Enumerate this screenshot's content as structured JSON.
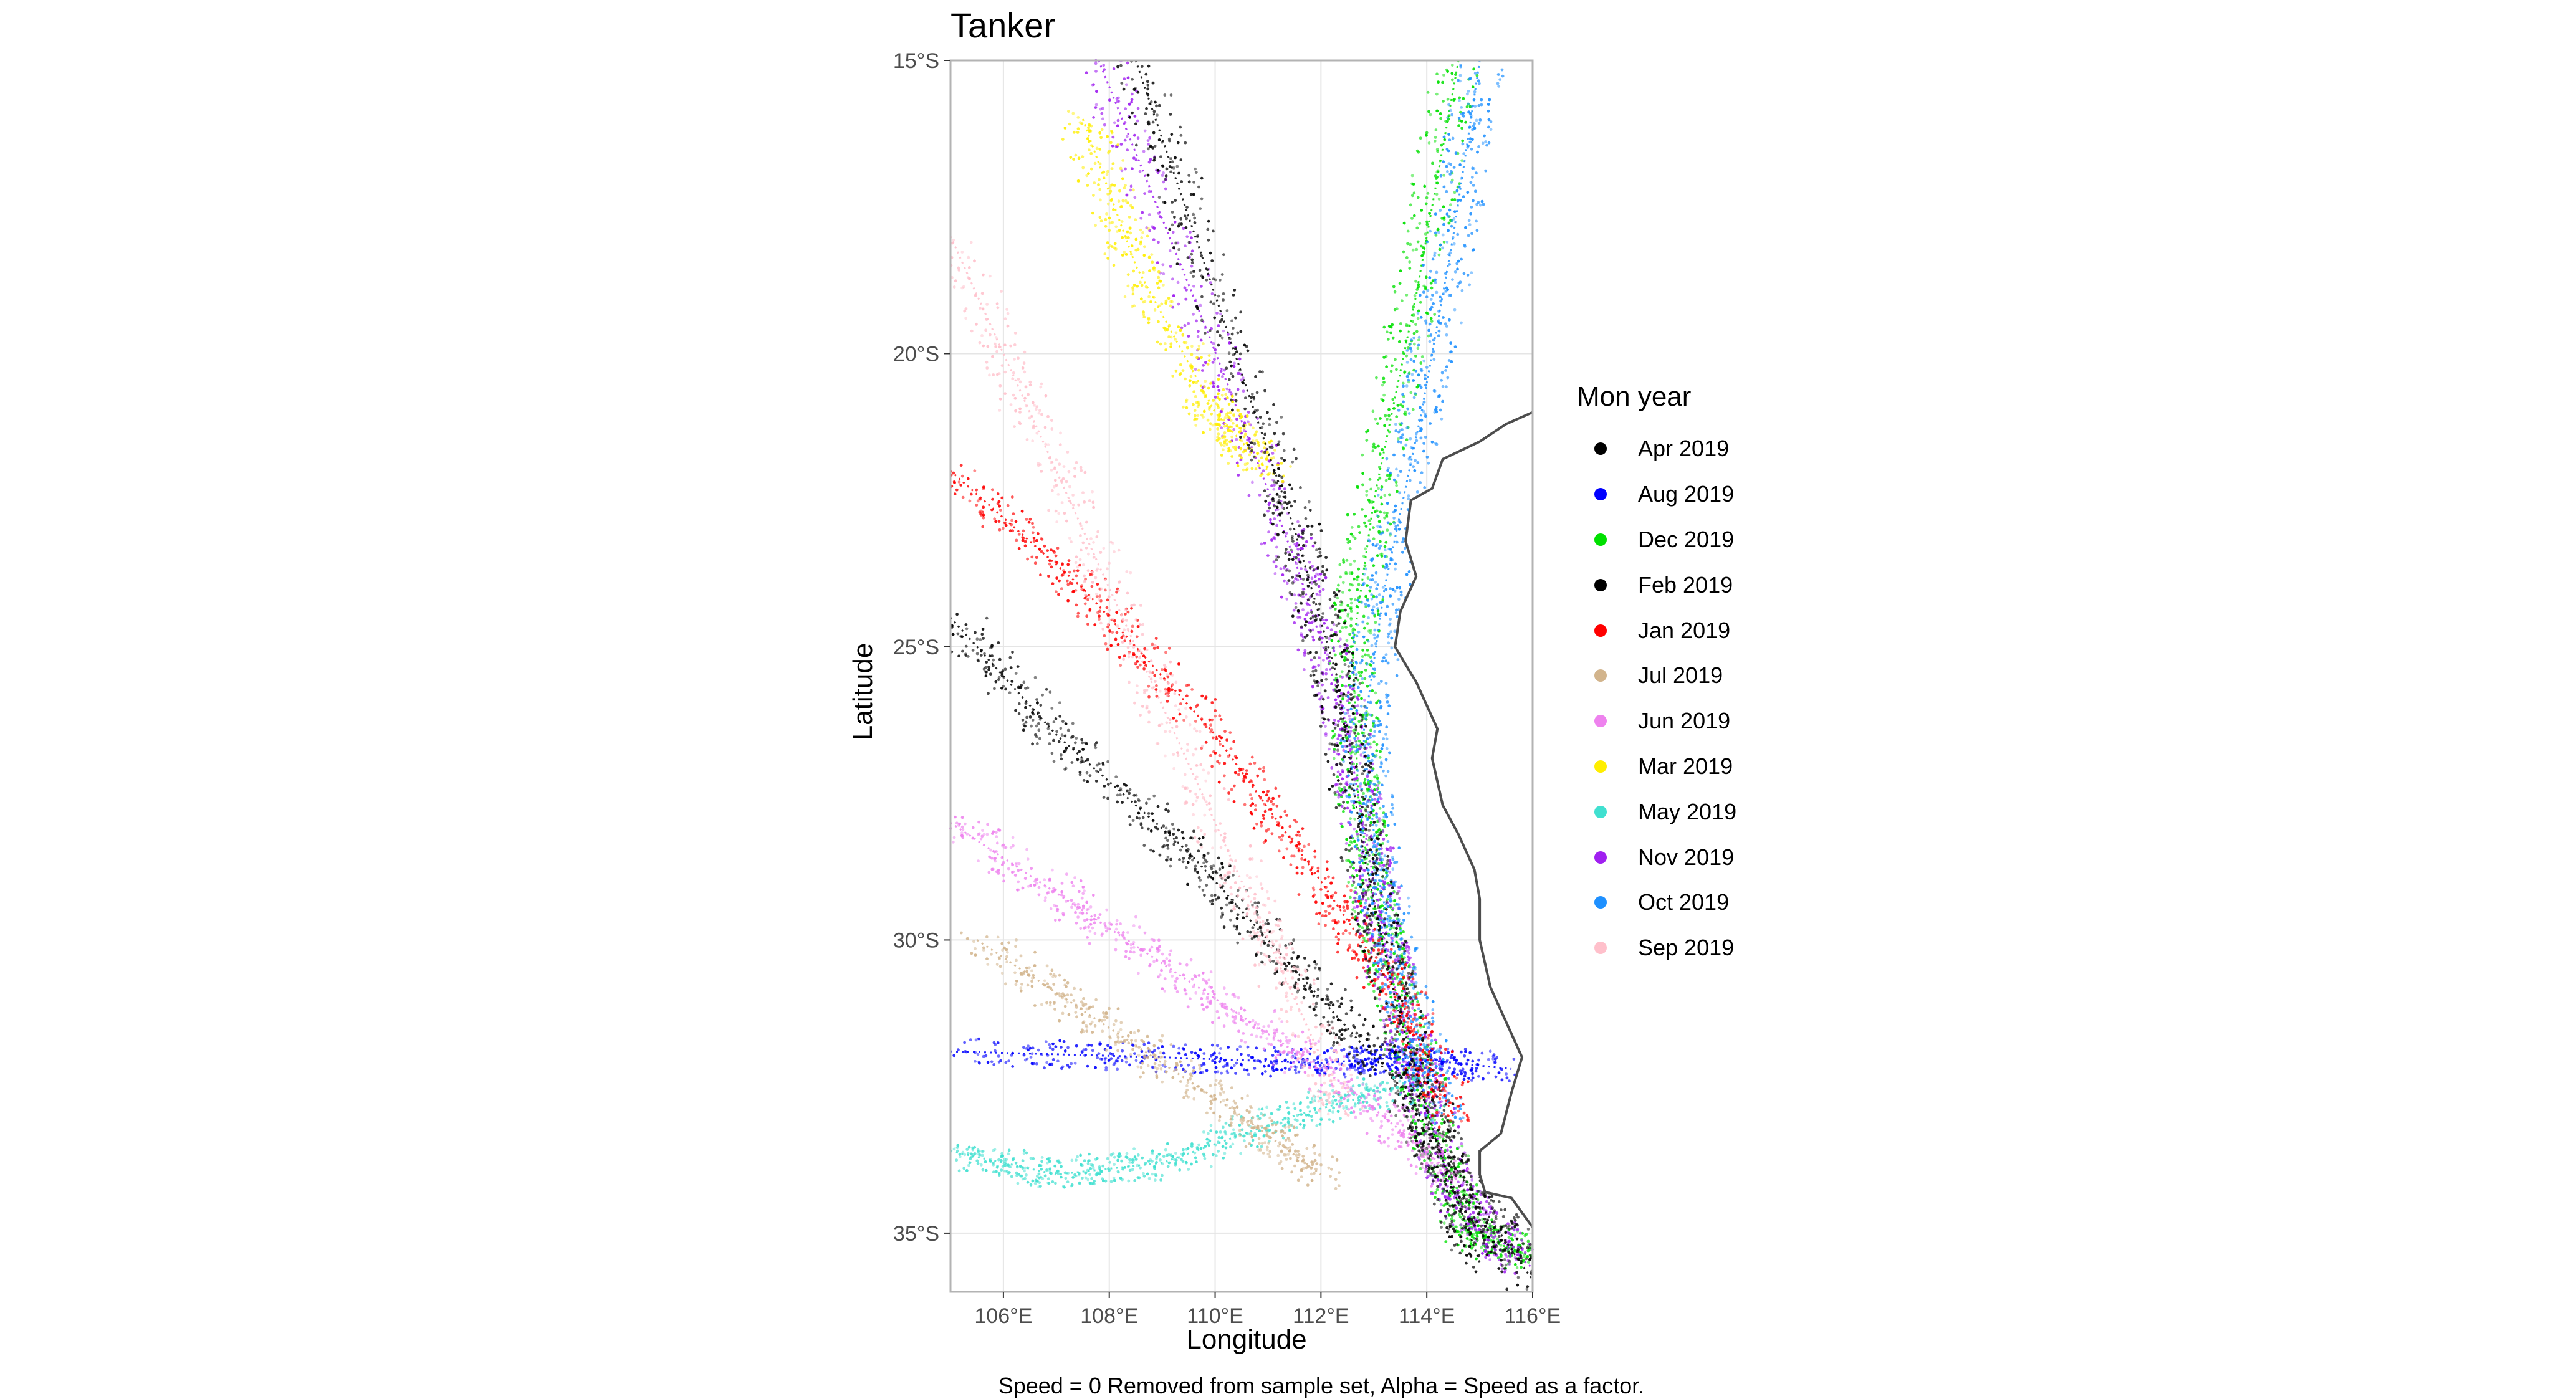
{
  "chart_data": {
    "type": "scatter",
    "title": "Tanker",
    "xlabel": "Longitude",
    "ylabel": "Latitude",
    "caption": "Speed = 0 Removed from sample set, Alpha = Speed as a factor.",
    "xlim": [
      105.0,
      116.0
    ],
    "ylim": [
      -36.0,
      -15.0
    ],
    "x_ticks": [
      106,
      108,
      110,
      112,
      114,
      116
    ],
    "x_tick_labels": [
      "106°E",
      "108°E",
      "110°E",
      "112°E",
      "114°E",
      "116°E"
    ],
    "y_ticks": [
      -15,
      -20,
      -25,
      -30,
      -35
    ],
    "y_tick_labels": [
      "15°S",
      "20°S",
      "25°S",
      "30°S",
      "35°S"
    ],
    "grid": true,
    "legend": {
      "title": "Mon year",
      "position": "right",
      "entries": [
        {
          "label": "Apr 2019",
          "color": "#000000"
        },
        {
          "label": "Aug 2019",
          "color": "#0000ff"
        },
        {
          "label": "Dec 2019",
          "color": "#00e000"
        },
        {
          "label": "Feb 2019",
          "color": "#000000"
        },
        {
          "label": "Jan 2019",
          "color": "#ff0000"
        },
        {
          "label": "Jul 2019",
          "color": "#d2b48c"
        },
        {
          "label": "Jun 2019",
          "color": "#ee82ee"
        },
        {
          "label": "Mar 2019",
          "color": "#ffee00"
        },
        {
          "label": "May 2019",
          "color": "#40e0d0"
        },
        {
          "label": "Nov 2019",
          "color": "#a020f0"
        },
        {
          "label": "Oct 2019",
          "color": "#1e90ff"
        },
        {
          "label": "Sep 2019",
          "color": "#ffc0cb"
        }
      ]
    },
    "coastline": [
      [
        116.0,
        -21.0
      ],
      [
        115.5,
        -21.2
      ],
      [
        115.0,
        -21.5
      ],
      [
        114.3,
        -21.8
      ],
      [
        114.1,
        -22.3
      ],
      [
        113.7,
        -22.5
      ],
      [
        113.6,
        -23.2
      ],
      [
        113.8,
        -23.8
      ],
      [
        113.5,
        -24.4
      ],
      [
        113.4,
        -25.0
      ],
      [
        113.6,
        -25.3
      ],
      [
        113.8,
        -25.6
      ],
      [
        114.0,
        -26.0
      ],
      [
        114.2,
        -26.4
      ],
      [
        114.1,
        -26.9
      ],
      [
        114.3,
        -27.7
      ],
      [
        114.6,
        -28.2
      ],
      [
        114.9,
        -28.8
      ],
      [
        115.0,
        -29.3
      ],
      [
        115.0,
        -30.0
      ],
      [
        115.2,
        -30.8
      ],
      [
        115.6,
        -31.6
      ],
      [
        115.8,
        -32.0
      ],
      [
        115.6,
        -32.6
      ],
      [
        115.4,
        -33.3
      ],
      [
        115.0,
        -33.6
      ],
      [
        115.0,
        -34.0
      ],
      [
        115.1,
        -34.3
      ],
      [
        115.6,
        -34.4
      ],
      [
        116.0,
        -34.9
      ]
    ],
    "series": [
      {
        "name": "Dec 2019",
        "color": "#00e000",
        "path": [
          [
            114.6,
            -15.0
          ],
          [
            113.8,
            -19.0
          ],
          [
            113.0,
            -22.5
          ],
          [
            112.6,
            -25.0
          ],
          [
            112.7,
            -27.5
          ],
          [
            113.0,
            -29.5
          ],
          [
            113.6,
            -31.5
          ],
          [
            114.2,
            -33.5
          ],
          [
            114.8,
            -35.0
          ],
          [
            116.0,
            -35.4
          ]
        ]
      },
      {
        "name": "Nov 2019",
        "color": "#a020f0",
        "path": [
          [
            107.8,
            -15.0
          ],
          [
            109.8,
            -19.5
          ],
          [
            111.5,
            -23.5
          ],
          [
            112.4,
            -26.0
          ],
          [
            112.9,
            -28.5
          ],
          [
            113.3,
            -30.5
          ],
          [
            113.9,
            -32.5
          ],
          [
            114.6,
            -34.5
          ],
          [
            116.0,
            -35.6
          ]
        ]
      },
      {
        "name": "Aug 2019",
        "color": "#0000ff",
        "path": [
          [
            105.0,
            -31.9
          ],
          [
            109.0,
            -32.0
          ],
          [
            112.0,
            -32.1
          ],
          [
            113.5,
            -32.0
          ],
          [
            115.6,
            -32.2
          ]
        ]
      },
      {
        "name": "Oct 2019",
        "color": "#1e90ff",
        "path": [
          [
            115.0,
            -15.0
          ],
          [
            114.5,
            -18.0
          ],
          [
            113.9,
            -21.0
          ],
          [
            113.2,
            -24.0
          ],
          [
            112.8,
            -26.5
          ],
          [
            113.1,
            -29.0
          ],
          [
            113.6,
            -31.0
          ],
          [
            114.3,
            -33.0
          ]
        ]
      },
      {
        "name": "Apr 2019",
        "color": "#000000",
        "path": [
          [
            105.0,
            -24.5
          ],
          [
            107.0,
            -26.5
          ],
          [
            109.5,
            -28.5
          ],
          [
            111.5,
            -30.5
          ],
          [
            113.5,
            -32.5
          ],
          [
            115.0,
            -34.5
          ],
          [
            116.0,
            -35.8
          ]
        ]
      },
      {
        "name": "Jan 2019",
        "color": "#ff0000",
        "path": [
          [
            105.0,
            -22.0
          ],
          [
            107.5,
            -24.0
          ],
          [
            110.0,
            -26.5
          ],
          [
            112.0,
            -29.0
          ],
          [
            113.5,
            -31.0
          ],
          [
            114.5,
            -33.0
          ]
        ]
      },
      {
        "name": "May 2019",
        "color": "#40e0d0",
        "path": [
          [
            105.0,
            -33.6
          ],
          [
            107.0,
            -34.0
          ],
          [
            109.0,
            -33.8
          ],
          [
            111.5,
            -33.0
          ],
          [
            113.5,
            -32.5
          ]
        ]
      },
      {
        "name": "Jun 2019",
        "color": "#ee82ee",
        "path": [
          [
            105.0,
            -28.0
          ],
          [
            107.5,
            -29.5
          ],
          [
            110.0,
            -31.0
          ],
          [
            112.5,
            -32.5
          ],
          [
            114.5,
            -34.0
          ]
        ]
      },
      {
        "name": "Mar 2019",
        "color": "#ffee00",
        "path": [
          [
            107.5,
            -16.0
          ],
          [
            108.5,
            -18.5
          ],
          [
            110.0,
            -21.0
          ],
          [
            111.0,
            -22.0
          ]
        ]
      },
      {
        "name": "Sep 2019",
        "color": "#ffc0cb",
        "path": [
          [
            105.0,
            -18.0
          ],
          [
            107.0,
            -22.0
          ],
          [
            109.0,
            -26.0
          ],
          [
            111.0,
            -30.0
          ],
          [
            112.5,
            -33.0
          ]
        ]
      },
      {
        "name": "Jul 2019",
        "color": "#d2b48c",
        "path": [
          [
            105.5,
            -30.0
          ],
          [
            108.0,
            -31.5
          ],
          [
            110.5,
            -33.0
          ],
          [
            112.0,
            -34.0
          ]
        ]
      },
      {
        "name": "Feb 2019",
        "color": "#000000",
        "path": [
          [
            108.5,
            -15.0
          ],
          [
            110.0,
            -19.0
          ],
          [
            111.5,
            -23.0
          ],
          [
            112.3,
            -25.5
          ],
          [
            112.8,
            -28.5
          ],
          [
            113.4,
            -31.0
          ],
          [
            114.2,
            -33.5
          ],
          [
            115.0,
            -35.5
          ]
        ]
      }
    ]
  }
}
